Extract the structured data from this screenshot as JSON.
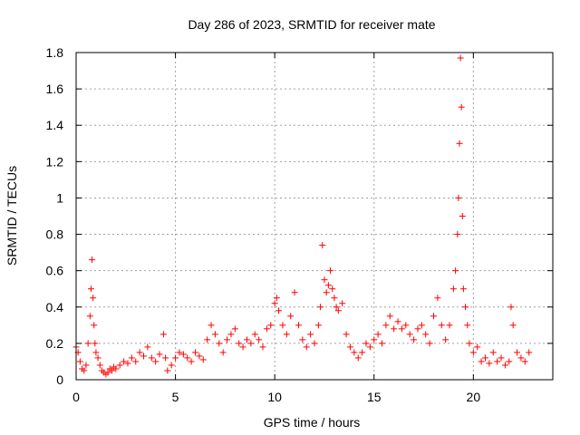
{
  "chart_data": {
    "type": "scatter",
    "title": "Day 286 of 2023, SRMTID for receiver mate",
    "xlabel": "GPS time / hours",
    "ylabel": "SRMTID / TECUs",
    "xlim": [
      0,
      24
    ],
    "ylim": [
      0,
      1.8
    ],
    "xticks": [
      0,
      5,
      10,
      15,
      20
    ],
    "xtick_labels": [
      "0",
      "5",
      "10",
      "15",
      "20"
    ],
    "yticks": [
      0,
      0.2,
      0.4,
      0.6,
      0.8,
      1,
      1.2,
      1.4,
      1.6,
      1.8
    ],
    "ytick_labels": [
      "0",
      "0.2",
      "0.4",
      "0.6",
      "0.8",
      "1",
      "1.2",
      "1.4",
      "1.6",
      "1.8"
    ],
    "grid": true,
    "marker": "+",
    "marker_color": "#ff0000",
    "series": [
      {
        "name": "SRMTID",
        "x": [
          0.0,
          0.1,
          0.2,
          0.3,
          0.4,
          0.5,
          0.6,
          0.7,
          0.75,
          0.8,
          0.85,
          0.9,
          0.95,
          1.0,
          1.1,
          1.2,
          1.3,
          1.4,
          1.5,
          1.6,
          1.7,
          1.8,
          1.9,
          2.0,
          2.2,
          2.4,
          2.6,
          2.8,
          3.0,
          3.2,
          3.4,
          3.6,
          3.8,
          4.0,
          4.2,
          4.4,
          4.5,
          4.6,
          4.8,
          5.0,
          5.2,
          5.4,
          5.6,
          5.8,
          6.0,
          6.2,
          6.4,
          6.6,
          6.8,
          7.0,
          7.2,
          7.4,
          7.6,
          7.8,
          8.0,
          8.2,
          8.4,
          8.6,
          8.8,
          9.0,
          9.2,
          9.4,
          9.6,
          9.8,
          10.0,
          10.1,
          10.2,
          10.4,
          10.6,
          10.8,
          11.0,
          11.2,
          11.4,
          11.6,
          11.8,
          12.0,
          12.2,
          12.3,
          12.4,
          12.5,
          12.6,
          12.7,
          12.8,
          12.9,
          13.0,
          13.1,
          13.2,
          13.4,
          13.6,
          13.8,
          14.0,
          14.2,
          14.4,
          14.6,
          14.8,
          15.0,
          15.2,
          15.4,
          15.6,
          15.8,
          16.0,
          16.2,
          16.4,
          16.6,
          16.8,
          17.0,
          17.2,
          17.4,
          17.6,
          17.8,
          18.0,
          18.2,
          18.4,
          18.6,
          18.8,
          19.0,
          19.1,
          19.2,
          19.25,
          19.3,
          19.35,
          19.4,
          19.45,
          19.5,
          19.6,
          19.7,
          19.8,
          20.0,
          20.2,
          20.4,
          20.6,
          20.8,
          21.0,
          21.2,
          21.4,
          21.6,
          21.8,
          21.9,
          22.0,
          22.2,
          22.4,
          22.6,
          22.8
        ],
        "y": [
          0.18,
          0.15,
          0.1,
          0.06,
          0.05,
          0.08,
          0.2,
          0.35,
          0.5,
          0.66,
          0.45,
          0.3,
          0.2,
          0.15,
          0.12,
          0.08,
          0.05,
          0.04,
          0.03,
          0.04,
          0.06,
          0.05,
          0.07,
          0.06,
          0.08,
          0.1,
          0.09,
          0.12,
          0.1,
          0.15,
          0.13,
          0.18,
          0.12,
          0.1,
          0.14,
          0.25,
          0.12,
          0.05,
          0.08,
          0.12,
          0.15,
          0.14,
          0.12,
          0.1,
          0.15,
          0.13,
          0.11,
          0.22,
          0.3,
          0.25,
          0.2,
          0.15,
          0.22,
          0.25,
          0.28,
          0.2,
          0.18,
          0.22,
          0.2,
          0.25,
          0.22,
          0.18,
          0.28,
          0.3,
          0.42,
          0.45,
          0.38,
          0.3,
          0.25,
          0.35,
          0.48,
          0.3,
          0.22,
          0.18,
          0.25,
          0.2,
          0.3,
          0.4,
          0.74,
          0.55,
          0.48,
          0.52,
          0.6,
          0.5,
          0.45,
          0.4,
          0.38,
          0.42,
          0.25,
          0.18,
          0.15,
          0.12,
          0.15,
          0.2,
          0.18,
          0.22,
          0.25,
          0.2,
          0.3,
          0.35,
          0.28,
          0.32,
          0.28,
          0.3,
          0.25,
          0.22,
          0.28,
          0.3,
          0.25,
          0.2,
          0.35,
          0.45,
          0.3,
          0.22,
          0.3,
          0.5,
          0.6,
          0.8,
          1.0,
          1.3,
          1.77,
          1.5,
          0.9,
          0.5,
          0.4,
          0.3,
          0.2,
          0.15,
          0.18,
          0.1,
          0.12,
          0.09,
          0.15,
          0.1,
          0.12,
          0.08,
          0.1,
          0.4,
          0.3,
          0.15,
          0.12,
          0.1,
          0.15
        ]
      }
    ]
  }
}
